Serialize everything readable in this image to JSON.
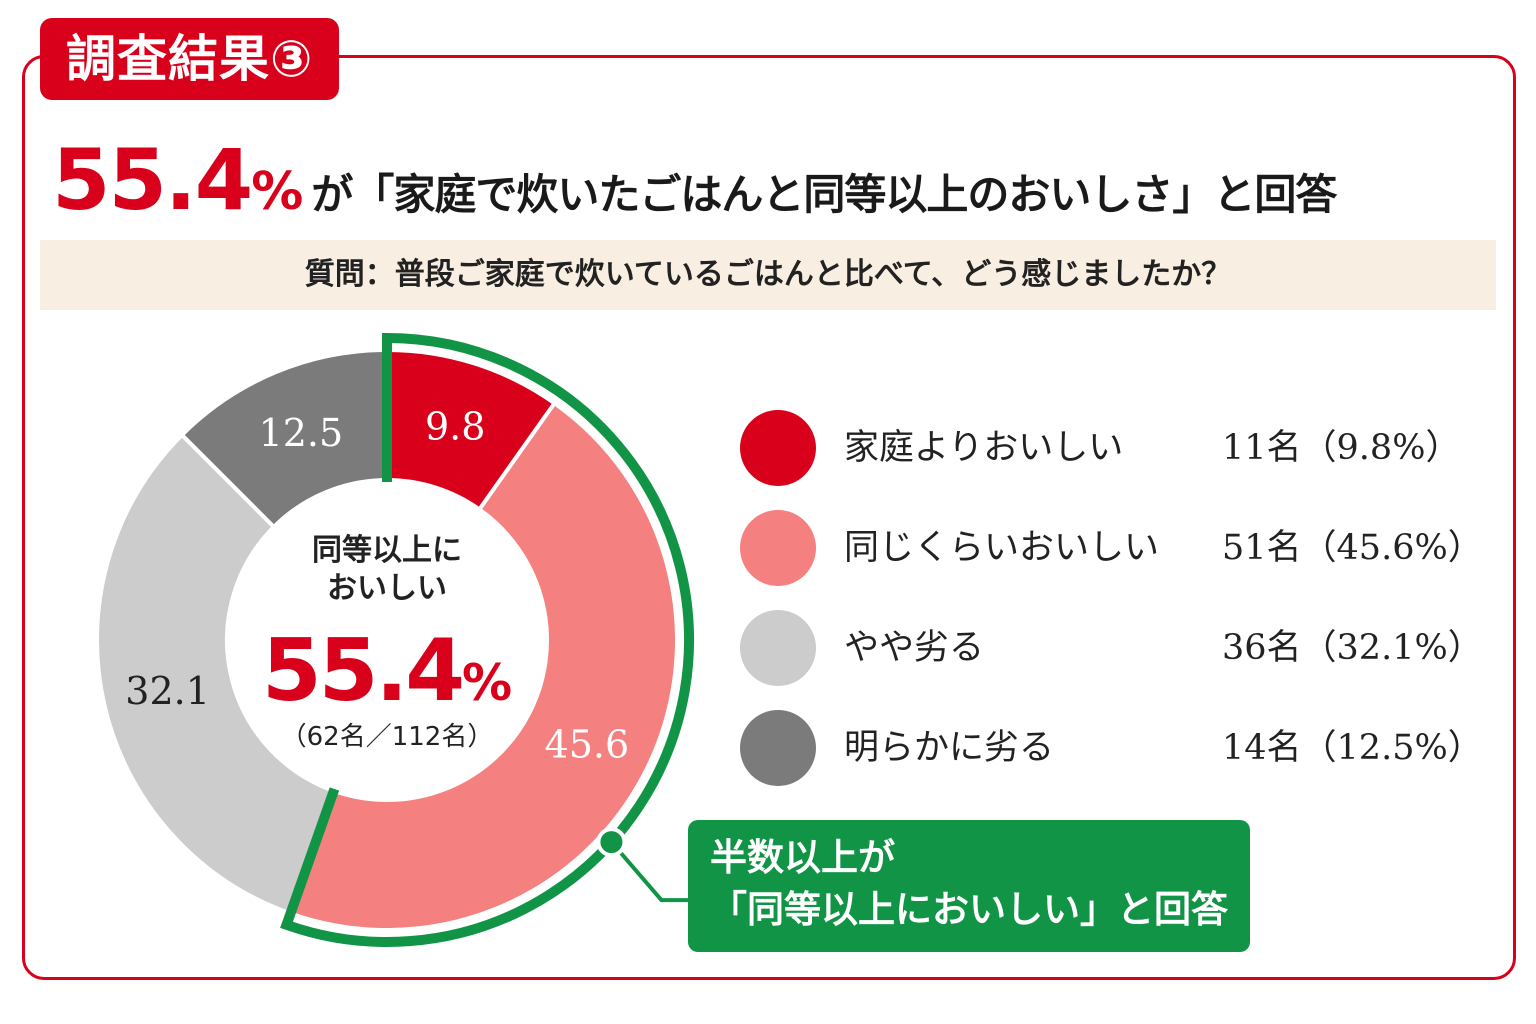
{
  "tag": "調査結果③",
  "headline": {
    "percent": "55.4",
    "percent_sign": "%",
    "rest": "が「家庭で炊いたごはんと同等以上のおいしさ」と回答"
  },
  "question": "質問：普段ご家庭で炊いているごはんと比べて、どう感じましたか？",
  "center": {
    "line1": "同等以上に",
    "line2": "おいしい",
    "value": "55.4",
    "sign": "%",
    "sub": "（62名／112名）"
  },
  "callout": {
    "line1": "半数以上が",
    "line2": "「同等以上においしい」と回答"
  },
  "colors": {
    "accent_red": "#d9001b",
    "pink": "#f4807f",
    "light_gray": "#cccccc",
    "dark_gray": "#7b7b7b",
    "green": "#129447"
  },
  "chart_data": {
    "type": "pie",
    "categories": [
      "家庭よりおいしい",
      "同じくらいおいしい",
      "やや劣る",
      "明らかに劣る"
    ],
    "values": [
      9.8,
      45.6,
      32.1,
      12.5
    ],
    "labels": [
      "9.8",
      "45.6",
      "32.1",
      "12.5"
    ],
    "counts": [
      "11名（9.8%）",
      "51名（45.6%）",
      "36名（32.1%）",
      "14名（12.5%）"
    ],
    "colors": [
      "#d9001b",
      "#f4807f",
      "#cccccc",
      "#7b7b7b"
    ],
    "label_colors": [
      "#ffffff",
      "#ffffff",
      "#222222",
      "#ffffff"
    ],
    "legend": "right"
  }
}
